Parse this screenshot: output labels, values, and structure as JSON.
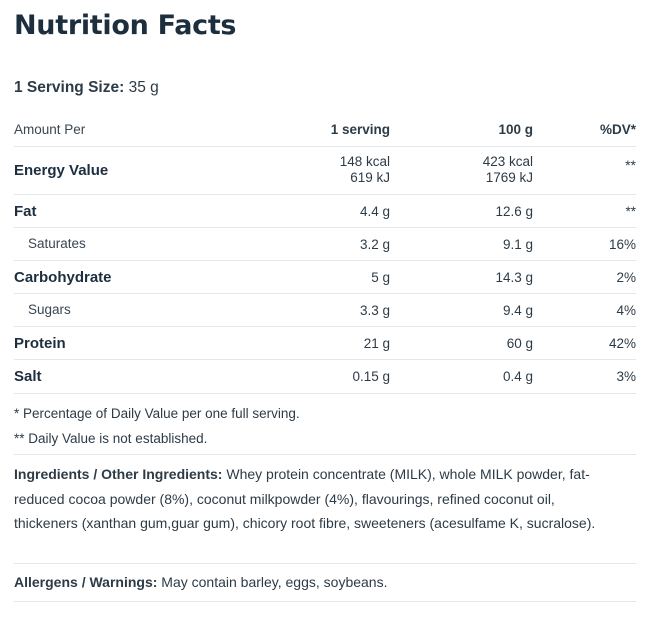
{
  "title": "Nutrition Facts",
  "serving": {
    "label": "1 Serving Size:",
    "value": "35 g"
  },
  "table": {
    "headers": {
      "amount": "Amount Per",
      "serving": "1 serving",
      "per100": "100 g",
      "dv": "%DV*"
    },
    "energy": {
      "name": "Energy Value",
      "serving_kcal": "148 kcal",
      "serving_kj": "619 kJ",
      "per100_kcal": "423 kcal",
      "per100_kj": "1769 kJ",
      "dv": "**"
    },
    "rows": [
      {
        "name": "Fat",
        "serving": "4.4 g",
        "per100": "12.6 g",
        "dv": "**"
      },
      {
        "name": "Saturates",
        "serving": "3.2 g",
        "per100": "9.1 g",
        "dv": "16%"
      },
      {
        "name": "Carbohydrate",
        "serving": "5 g",
        "per100": "14.3 g",
        "dv": "2%"
      },
      {
        "name": "Sugars",
        "serving": "3.3 g",
        "per100": "9.4 g",
        "dv": "4%"
      },
      {
        "name": "Protein",
        "serving": "21 g",
        "per100": "60 g",
        "dv": "42%"
      },
      {
        "name": "Salt",
        "serving": "0.15 g",
        "per100": "0.4 g",
        "dv": "3%"
      }
    ]
  },
  "notes": {
    "note1": "* Percentage of Daily Value per one full serving.",
    "note2": "** Daily Value is not established."
  },
  "ingredients": {
    "label": "Ingredients / Other Ingredients:",
    "text": "Whey protein concentrate (MILK), whole MILK powder, fat-reduced cocoa powder  (8%), coconut milkpowder  (4%), flavourings, refined coconut oil, thickeners  (xanthan gum,guar gum), chicory root fibre, sweeteners  (acesulfame K, sucralose)."
  },
  "allergens": {
    "label": "Allergens / Warnings:",
    "text": "May contain barley, eggs, soybeans."
  }
}
